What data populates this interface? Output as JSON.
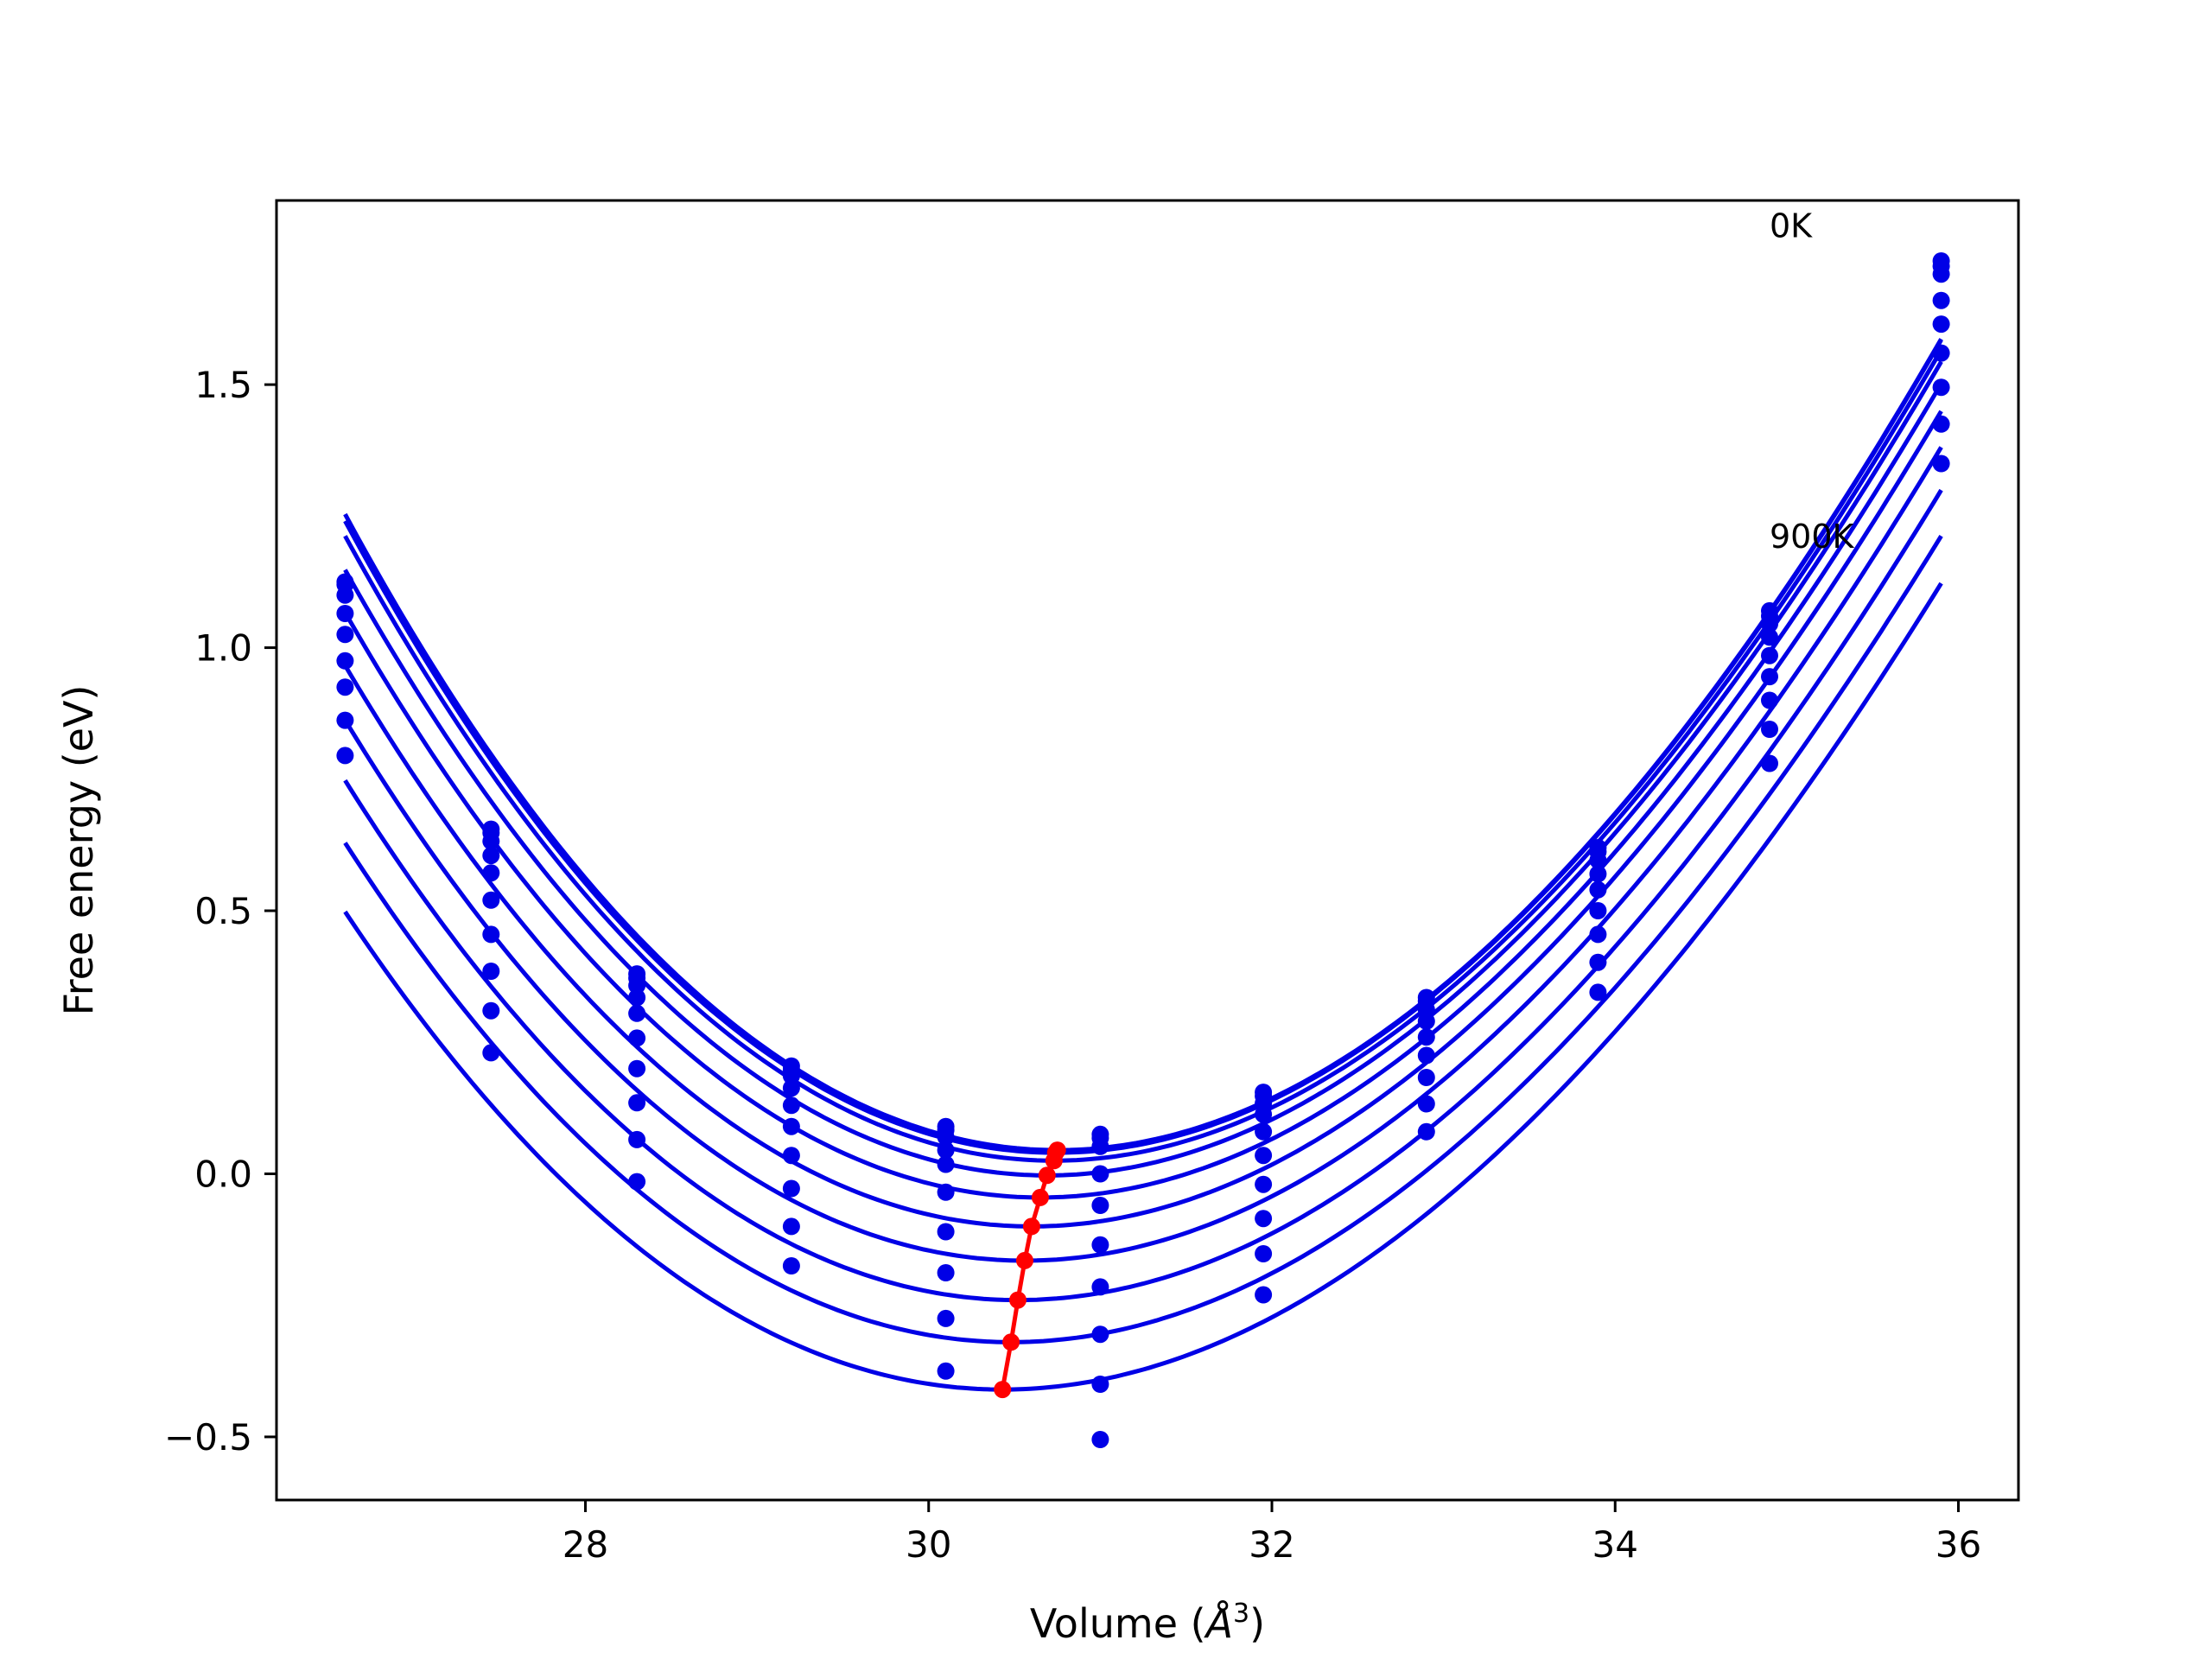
{
  "chart_data": {
    "type": "scatter",
    "xlabel": "Volume (",
    "xlabel_unit": "Å",
    "xlabel_exp": "3",
    "xlabel_end": ")",
    "ylabel": "Free energy (eV)",
    "xlim": [
      26.2,
      36.35
    ],
    "ylim": [
      -0.62,
      1.85
    ],
    "xticks": [
      28,
      30,
      32,
      34,
      36
    ],
    "xtick_labels": [
      "28",
      "30",
      "32",
      "34",
      "36"
    ],
    "yticks": [
      -0.5,
      0.0,
      0.5,
      1.0,
      1.5
    ],
    "ytick_labels": [
      "−0.5",
      "0.0",
      "0.5",
      "1.0",
      "1.5"
    ],
    "grid": false,
    "annotations": [
      {
        "text": "0K",
        "x": 34.9,
        "y": 1.78
      },
      {
        "text": "900K",
        "x": 34.9,
        "y": 1.19
      }
    ],
    "colors": {
      "curves": "#0000e6",
      "min_line": "#ff0000",
      "axes": "#000000"
    },
    "x_points": [
      26.6,
      27.45,
      28.3,
      29.2,
      30.1,
      31.0,
      31.95,
      32.9,
      33.9,
      34.9,
      35.9
    ],
    "series": [
      {
        "label": "0K",
        "v0": 30.75,
        "e0": 0.045,
        "a": 0.0648,
        "y": [
          1.125,
          0.655,
          0.38,
          0.205,
          0.09,
          0.075,
          0.155,
          0.335,
          0.62,
          1.07,
          1.735
        ]
      },
      {
        "v0": 30.74,
        "e0": 0.04,
        "a": 0.0647,
        "y": [
          1.12,
          0.648,
          0.372,
          0.198,
          0.083,
          0.068,
          0.148,
          0.328,
          0.612,
          1.06,
          1.725
        ]
      },
      {
        "v0": 30.73,
        "e0": 0.025,
        "a": 0.0643,
        "y": [
          1.1,
          0.632,
          0.358,
          0.186,
          0.07,
          0.052,
          0.134,
          0.312,
          0.596,
          1.045,
          1.71
        ]
      },
      {
        "v0": 30.69,
        "e0": -0.003,
        "a": 0.0636,
        "y": [
          1.065,
          0.605,
          0.335,
          0.163,
          0.045,
          0.0,
          0.113,
          0.29,
          0.57,
          1.02,
          1.66
        ]
      },
      {
        "v0": 30.65,
        "e0": -0.045,
        "a": 0.0627,
        "y": [
          1.025,
          0.572,
          0.305,
          0.13,
          0.018,
          -0.06,
          0.08,
          0.26,
          0.54,
          0.985,
          1.615
        ]
      },
      {
        "v0": 30.6,
        "e0": -0.1,
        "a": 0.0617,
        "y": [
          0.975,
          0.52,
          0.258,
          0.09,
          -0.035,
          -0.135,
          0.035,
          0.225,
          0.5,
          0.945,
          1.56
        ]
      },
      {
        "v0": 30.56,
        "e0": -0.165,
        "a": 0.0607,
        "y": [
          0.925,
          0.455,
          0.2,
          0.035,
          -0.11,
          -0.215,
          -0.02,
          0.183,
          0.455,
          0.9,
          1.495
        ]
      },
      {
        "v0": 30.52,
        "e0": -0.24,
        "a": 0.0596,
        "y": [
          0.862,
          0.385,
          0.135,
          -0.028,
          -0.188,
          -0.305,
          -0.085,
          0.133,
          0.402,
          0.845,
          1.425
        ]
      },
      {
        "v0": 30.48,
        "e0": -0.32,
        "a": 0.0585,
        "y": [
          0.795,
          0.31,
          0.065,
          -0.1,
          -0.275,
          -0.4,
          -0.152,
          0.08,
          0.345,
          0.78,
          1.35
        ]
      },
      {
        "label": "900K",
        "v0": 30.43,
        "e0": -0.41,
        "a": 0.0575,
        "y": [
          null,
          0.23,
          -0.015,
          -0.175,
          -0.375,
          -0.505,
          -0.23,
          null,
          null,
          null,
          null
        ]
      }
    ],
    "min_line": {
      "x": [
        30.43,
        30.48,
        30.52,
        30.56,
        30.6,
        30.65,
        30.69,
        30.73,
        30.74,
        30.75
      ],
      "y": [
        -0.41,
        -0.32,
        -0.24,
        -0.165,
        -0.1,
        -0.045,
        -0.003,
        0.025,
        0.04,
        0.045
      ]
    }
  }
}
